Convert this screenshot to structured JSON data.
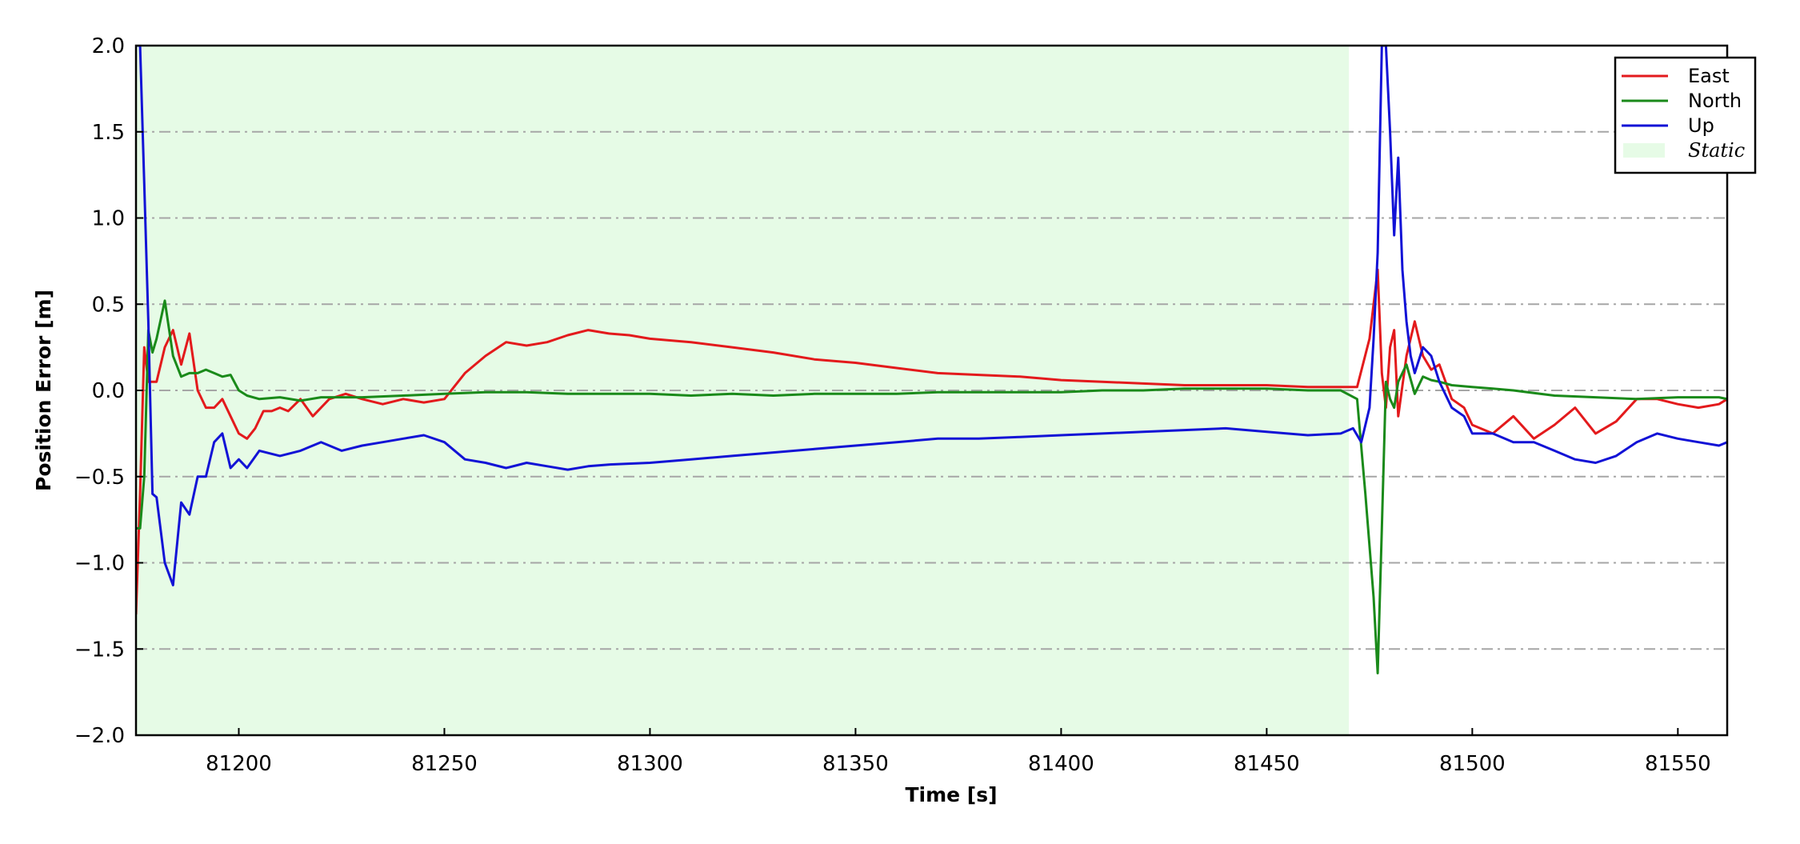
{
  "chart_data": {
    "type": "line",
    "xlabel": "Time [s]",
    "ylabel": "Position Error [m]",
    "xlim": [
      81175,
      81562
    ],
    "ylim": [
      -2.0,
      2.0
    ],
    "x_ticks": [
      81200,
      81250,
      81300,
      81350,
      81400,
      81450,
      81500,
      81550
    ],
    "y_ticks": [
      2.0,
      1.5,
      1.0,
      0.5,
      0.0,
      -0.5,
      -1.0,
      -1.5,
      -2.0
    ],
    "x_tick_labels": [
      "81200",
      "81250",
      "81300",
      "81350",
      "81400",
      "81450",
      "81500",
      "81550"
    ],
    "y_tick_labels": [
      "2.0",
      "1.5",
      "1.0",
      "0.5",
      "0.0",
      "−0.5",
      "−1.0",
      "−1.5",
      "−2.0"
    ],
    "grid": "horizontal dash-dot",
    "legend_position": "top-right",
    "shaded_region": {
      "name": "Static",
      "x_start": 81175,
      "x_end": 81470,
      "color": "#e6fbe6"
    },
    "series": [
      {
        "name": "East",
        "color": "#e31a1c",
        "x": [
          81175,
          81176,
          81177,
          81178,
          81179,
          81180,
          81182,
          81184,
          81186,
          81188,
          81190,
          81192,
          81194,
          81196,
          81198,
          81200,
          81202,
          81204,
          81206,
          81208,
          81210,
          81212,
          81215,
          81218,
          81222,
          81226,
          81230,
          81235,
          81240,
          81245,
          81250,
          81255,
          81260,
          81265,
          81270,
          81275,
          81280,
          81285,
          81290,
          81295,
          81300,
          81310,
          81320,
          81330,
          81340,
          81350,
          81360,
          81370,
          81380,
          81390,
          81400,
          81410,
          81420,
          81430,
          81440,
          81450,
          81460,
          81468,
          81472,
          81475,
          81477,
          81478,
          81479,
          81480,
          81481,
          81482,
          81484,
          81486,
          81488,
          81490,
          81492,
          81495,
          81498,
          81500,
          81505,
          81510,
          81515,
          81520,
          81525,
          81530,
          81535,
          81540,
          81545,
          81550,
          81555,
          81560,
          81562
        ],
        "y": [
          -1.3,
          -0.6,
          0.25,
          0.05,
          0.05,
          0.05,
          0.25,
          0.35,
          0.15,
          0.33,
          0.0,
          -0.1,
          -0.1,
          -0.05,
          -0.15,
          -0.25,
          -0.28,
          -0.22,
          -0.12,
          -0.12,
          -0.1,
          -0.12,
          -0.05,
          -0.15,
          -0.05,
          -0.02,
          -0.05,
          -0.08,
          -0.05,
          -0.07,
          -0.05,
          0.1,
          0.2,
          0.28,
          0.26,
          0.28,
          0.32,
          0.35,
          0.33,
          0.32,
          0.3,
          0.28,
          0.25,
          0.22,
          0.18,
          0.16,
          0.13,
          0.1,
          0.09,
          0.08,
          0.06,
          0.05,
          0.04,
          0.03,
          0.03,
          0.03,
          0.02,
          0.02,
          0.02,
          0.3,
          0.7,
          0.1,
          -0.1,
          0.25,
          0.35,
          -0.15,
          0.2,
          0.4,
          0.2,
          0.12,
          0.15,
          -0.05,
          -0.1,
          -0.2,
          -0.25,
          -0.15,
          -0.28,
          -0.2,
          -0.1,
          -0.25,
          -0.18,
          -0.05,
          -0.05,
          -0.08,
          -0.1,
          -0.08,
          -0.05
        ]
      },
      {
        "name": "North",
        "color": "#1a8a1a",
        "x": [
          81175,
          81176,
          81177,
          81178,
          81179,
          81180,
          81182,
          81184,
          81186,
          81188,
          81190,
          81192,
          81194,
          81196,
          81198,
          81200,
          81202,
          81205,
          81210,
          81215,
          81220,
          81230,
          81240,
          81250,
          81260,
          81270,
          81280,
          81290,
          81300,
          81310,
          81320,
          81330,
          81340,
          81350,
          81360,
          81370,
          81380,
          81390,
          81400,
          81410,
          81420,
          81430,
          81440,
          81450,
          81460,
          81468,
          81472,
          81474,
          81476,
          81477,
          81478,
          81479,
          81480,
          81481,
          81482,
          81484,
          81486,
          81488,
          81490,
          81492,
          81495,
          81500,
          81505,
          81510,
          81520,
          81530,
          81540,
          81550,
          81560,
          81562
        ],
        "y": [
          -0.8,
          -0.8,
          -0.5,
          0.35,
          0.22,
          0.3,
          0.52,
          0.2,
          0.08,
          0.1,
          0.1,
          0.12,
          0.1,
          0.08,
          0.09,
          0.0,
          -0.03,
          -0.05,
          -0.04,
          -0.06,
          -0.04,
          -0.04,
          -0.03,
          -0.02,
          -0.01,
          -0.01,
          -0.02,
          -0.02,
          -0.02,
          -0.03,
          -0.02,
          -0.03,
          -0.02,
          -0.02,
          -0.02,
          -0.01,
          -0.01,
          -0.01,
          -0.01,
          0.0,
          0.0,
          0.01,
          0.01,
          0.01,
          0.0,
          0.0,
          -0.05,
          -0.6,
          -1.2,
          -1.64,
          -0.8,
          0.05,
          -0.05,
          -0.1,
          0.05,
          0.15,
          -0.02,
          0.08,
          0.06,
          0.05,
          0.03,
          0.02,
          0.01,
          0.0,
          -0.03,
          -0.04,
          -0.05,
          -0.04,
          -0.04,
          -0.05
        ]
      },
      {
        "name": "Up",
        "color": "#1212d6",
        "x": [
          81175,
          81176,
          81177,
          81178,
          81179,
          81180,
          81182,
          81184,
          81186,
          81188,
          81190,
          81192,
          81194,
          81196,
          81198,
          81200,
          81202,
          81205,
          81210,
          81215,
          81220,
          81225,
          81230,
          81235,
          81240,
          81245,
          81250,
          81255,
          81260,
          81265,
          81270,
          81275,
          81280,
          81285,
          81290,
          81300,
          81310,
          81320,
          81330,
          81340,
          81350,
          81360,
          81370,
          81380,
          81390,
          81400,
          81410,
          81420,
          81430,
          81440,
          81450,
          81460,
          81468,
          81471,
          81473,
          81475,
          81476,
          81477,
          81478,
          81479,
          81480,
          81481,
          81482,
          81483,
          81484,
          81485,
          81486,
          81488,
          81490,
          81492,
          81495,
          81498,
          81500,
          81505,
          81510,
          81515,
          81520,
          81525,
          81530,
          81535,
          81540,
          81545,
          81550,
          81555,
          81560,
          81562
        ],
        "y": [
          2.0,
          2.0,
          1.2,
          0.4,
          -0.6,
          -0.62,
          -1.0,
          -1.13,
          -0.65,
          -0.72,
          -0.5,
          -0.5,
          -0.3,
          -0.25,
          -0.45,
          -0.4,
          -0.45,
          -0.35,
          -0.38,
          -0.35,
          -0.3,
          -0.35,
          -0.32,
          -0.3,
          -0.28,
          -0.26,
          -0.3,
          -0.4,
          -0.42,
          -0.45,
          -0.42,
          -0.44,
          -0.46,
          -0.44,
          -0.43,
          -0.42,
          -0.4,
          -0.38,
          -0.36,
          -0.34,
          -0.32,
          -0.3,
          -0.28,
          -0.28,
          -0.27,
          -0.26,
          -0.25,
          -0.24,
          -0.23,
          -0.22,
          -0.24,
          -0.26,
          -0.25,
          -0.22,
          -0.3,
          -0.1,
          0.3,
          0.8,
          2.0,
          2.0,
          1.5,
          0.9,
          1.35,
          0.7,
          0.4,
          0.2,
          0.1,
          0.25,
          0.2,
          0.05,
          -0.1,
          -0.15,
          -0.25,
          -0.25,
          -0.3,
          -0.3,
          -0.35,
          -0.4,
          -0.42,
          -0.38,
          -0.3,
          -0.25,
          -0.28,
          -0.3,
          -0.32,
          -0.3
        ]
      }
    ]
  }
}
